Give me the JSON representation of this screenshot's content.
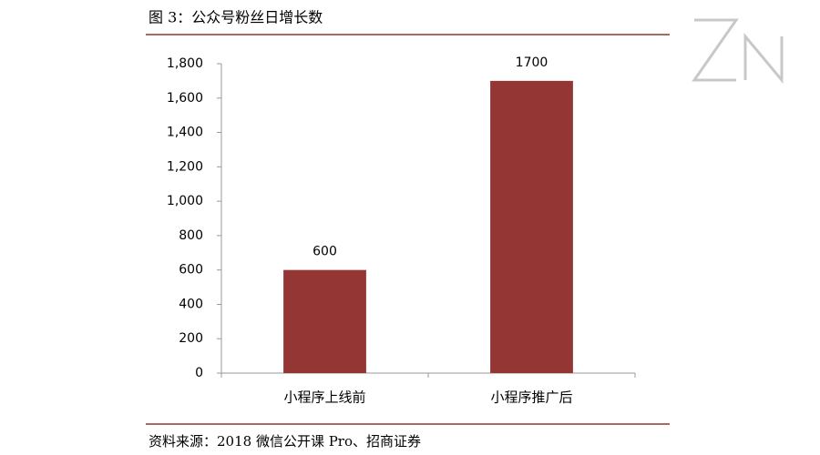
{
  "chart_data": {
    "type": "bar",
    "title": "图 3：公众号粉丝日增长数",
    "categories": [
      "小程序上线前",
      "小程序推广后"
    ],
    "values": [
      600,
      1700
    ],
    "color": "#943634",
    "ylim": [
      0,
      1800
    ],
    "yticks": [
      0,
      200,
      400,
      600,
      800,
      {
        "value": 1000,
        "label": "1,000"
      },
      {
        "value": 1200,
        "label": "1,200"
      },
      {
        "value": 1400,
        "label": "1,400"
      },
      {
        "value": 1600,
        "label": "1,600"
      },
      {
        "value": 1800,
        "label": "1,800"
      }
    ],
    "grid": false,
    "source": "资料来源：2018 微信公开课 Pro、招商证券"
  }
}
